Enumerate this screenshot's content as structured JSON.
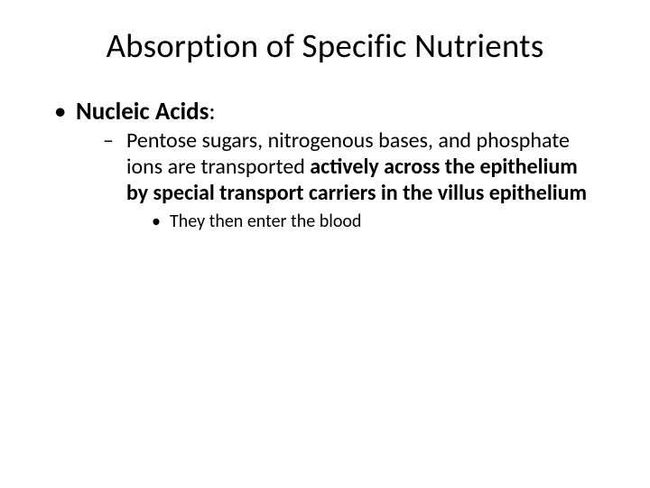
{
  "slide": {
    "title": "Absorption of Specific Nutrients",
    "bullets": {
      "l1": {
        "label": "Nucleic Acids",
        "colon": ":"
      },
      "l2": {
        "plain": "Pentose sugars, nitrogenous bases, and phosphate ions are transported ",
        "bold": "actively across the epithelium by special transport carriers in the villus epithelium"
      },
      "l3": {
        "text": "They then enter the blood"
      }
    }
  },
  "style": {
    "background_color": "#ffffff",
    "text_color": "#000000",
    "font_family": "Calibri",
    "title_fontsize": 37,
    "level1_fontsize": 27,
    "level2_fontsize": 24,
    "level3_fontsize": 20,
    "level1_marker": "•",
    "level2_marker": "–",
    "level3_marker": "•"
  }
}
